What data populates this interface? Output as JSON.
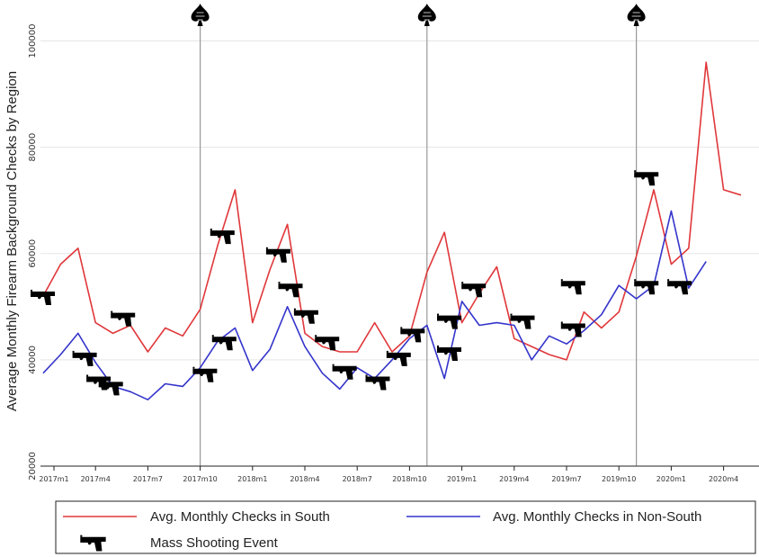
{
  "chart_data": {
    "type": "line",
    "title": "",
    "xlabel": "",
    "ylabel": "Average Monthly Firearm Background Checks by Region",
    "ylim": [
      20000,
      100000
    ],
    "y_ticks": [
      20000,
      40000,
      60000,
      80000,
      100000
    ],
    "x_tick_labels": [
      "2017m1",
      "2017m4",
      "2017m7",
      "2017m10",
      "2018m1",
      "2018m4",
      "2018m7",
      "2018m10",
      "2019m1",
      "2019m4",
      "2019m7",
      "2019m10",
      "2020m1",
      "2020m4"
    ],
    "grid": true,
    "x_start": "2017m1",
    "colors": {
      "south": "#e0373a",
      "nonsouth": "#3434cc",
      "event_line": "#999999",
      "grid": "#e5e5e5"
    },
    "series": [
      {
        "name": "Avg. Monthly Checks in South",
        "key": "south",
        "values": [
          52000,
          58000,
          61000,
          47000,
          45000,
          46500,
          41500,
          46000,
          44500,
          49500,
          61500,
          72000,
          47000,
          57000,
          65500,
          45000,
          42500,
          41500,
          41500,
          47000,
          41500,
          44500,
          56500,
          64000,
          47000,
          52500,
          57500,
          44000,
          42500,
          41000,
          40000,
          49000,
          46000,
          49000,
          59500,
          72000,
          58000,
          61000,
          96000,
          72000,
          71000
        ]
      },
      {
        "name": "Avg. Monthly Checks in Non-South",
        "key": "nonsouth",
        "values": [
          37500,
          41000,
          45000,
          39500,
          35000,
          34000,
          32500,
          35500,
          35000,
          38500,
          43500,
          46000,
          38000,
          42000,
          50000,
          42500,
          37500,
          34500,
          38500,
          36500,
          40000,
          44000,
          46500,
          36500,
          51000,
          46500,
          47000,
          46500,
          40000,
          44500,
          43000,
          45500,
          48500,
          54000,
          51500,
          54000,
          68000,
          53500,
          58500
        ]
      }
    ],
    "event_lines_at": [
      "2017m10",
      "2018m11",
      "2019m11"
    ],
    "mass_shooting_events": [
      {
        "x": 0,
        "y": 52000
      },
      {
        "x": 2.4,
        "y": 40500
      },
      {
        "x": 3.2,
        "y": 36000
      },
      {
        "x": 3.9,
        "y": 35000
      },
      {
        "x": 4.6,
        "y": 48000
      },
      {
        "x": 9.3,
        "y": 37500
      },
      {
        "x": 10.3,
        "y": 63500
      },
      {
        "x": 10.4,
        "y": 43500
      },
      {
        "x": 13.5,
        "y": 60000
      },
      {
        "x": 14.2,
        "y": 53500
      },
      {
        "x": 15.1,
        "y": 48500
      },
      {
        "x": 16.3,
        "y": 43500
      },
      {
        "x": 17.3,
        "y": 38000
      },
      {
        "x": 19.2,
        "y": 36000
      },
      {
        "x": 20.4,
        "y": 40500
      },
      {
        "x": 21.2,
        "y": 45000
      },
      {
        "x": 23.3,
        "y": 47500
      },
      {
        "x": 23.3,
        "y": 41500
      },
      {
        "x": 24.7,
        "y": 53500
      },
      {
        "x": 27.5,
        "y": 47500
      },
      {
        "x": 30.4,
        "y": 54000
      },
      {
        "x": 30.4,
        "y": 46000
      },
      {
        "x": 34.6,
        "y": 74500
      },
      {
        "x": 34.6,
        "y": 54000
      },
      {
        "x": 36.5,
        "y": 54000
      }
    ]
  },
  "legend": {
    "south_label": "Avg. Monthly Checks in South",
    "nonsouth_label": "Avg. Monthly Checks in Non-South",
    "event_label": "Mass Shooting Event"
  }
}
